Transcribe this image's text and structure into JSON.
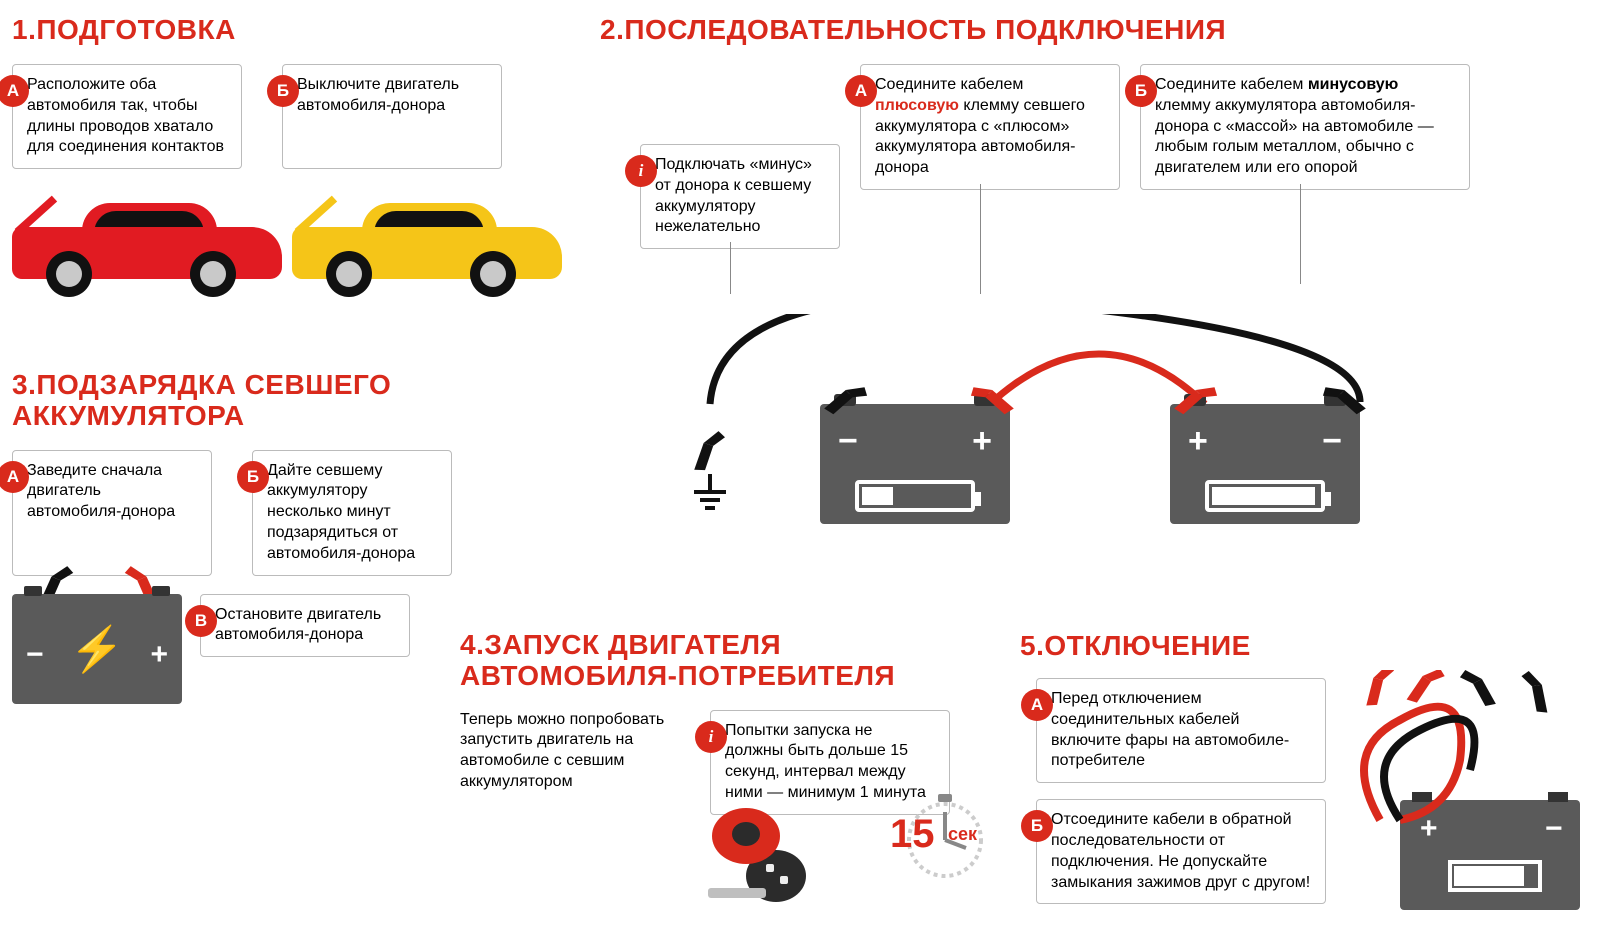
{
  "colors": {
    "accent": "#d92a1c",
    "gray": "#5a5a5a",
    "yellow": "#f5c518",
    "carRed": "#e11b22"
  },
  "section1": {
    "title": "1.ПОДГОТОВКА",
    "a": "Расположите оба автомобиля так, чтобы длины проводов хватало для соединения контактов",
    "b": "Выключите двигатель автомобиля-донора"
  },
  "section2": {
    "title": "2.ПОСЛЕДОВАТЕЛЬНОСТЬ ПОДКЛЮЧЕНИЯ",
    "i": "Подключать «минус» от донора к севшему аккумулятору нежелательно",
    "a_pre": "Соедините кабелем ",
    "a_hl": "плюсовую",
    "a_post": " клемму севшего аккумулятора с «плюсом» аккумулятора автомобиля-донора",
    "b_pre": "Соедините кабелем ",
    "b_hl": "минусовую",
    "b_post": " клемму аккумулятора автомобиля-донора с «массой» на автомобиле — любым голым металлом, обычно с двигателем или его опорой",
    "dead_fill": 28,
    "donor_fill": 92
  },
  "section3": {
    "title": "3.ПОДЗАРЯДКА СЕВШЕГО АККУМУЛЯТОРА",
    "a": "Заведите сначала двигатель автомобиля-донора",
    "b": "Дайте севшему аккумулятору несколько минут подзарядиться от автомобиля-донора",
    "v": "Остановите двигатель автомобиля-донора"
  },
  "section4": {
    "title": "4.ЗАПУСК ДВИГАТЕЛЯ АВТОМОБИЛЯ-ПОТРЕБИТЕЛЯ",
    "intro": "Теперь можно попробовать запустить двигатель на автомобиле с севшим аккумулятором",
    "i": "Попытки запуска не должны быть дольше 15 секунд, интервал между ними — минимум 1 минута",
    "big": "15",
    "unit": "сек"
  },
  "section5": {
    "title": "5.ОТКЛЮЧЕНИЕ",
    "a": "Перед отключением соединительных кабелей включите фары на автомобиле-потребителе",
    "b": "Отсоедините кабели в обратной последовательности от подключения. Не допускайте замыкания зажимов друг с другом!"
  },
  "badges": {
    "a": "А",
    "b": "Б",
    "v": "В",
    "i": "i"
  }
}
